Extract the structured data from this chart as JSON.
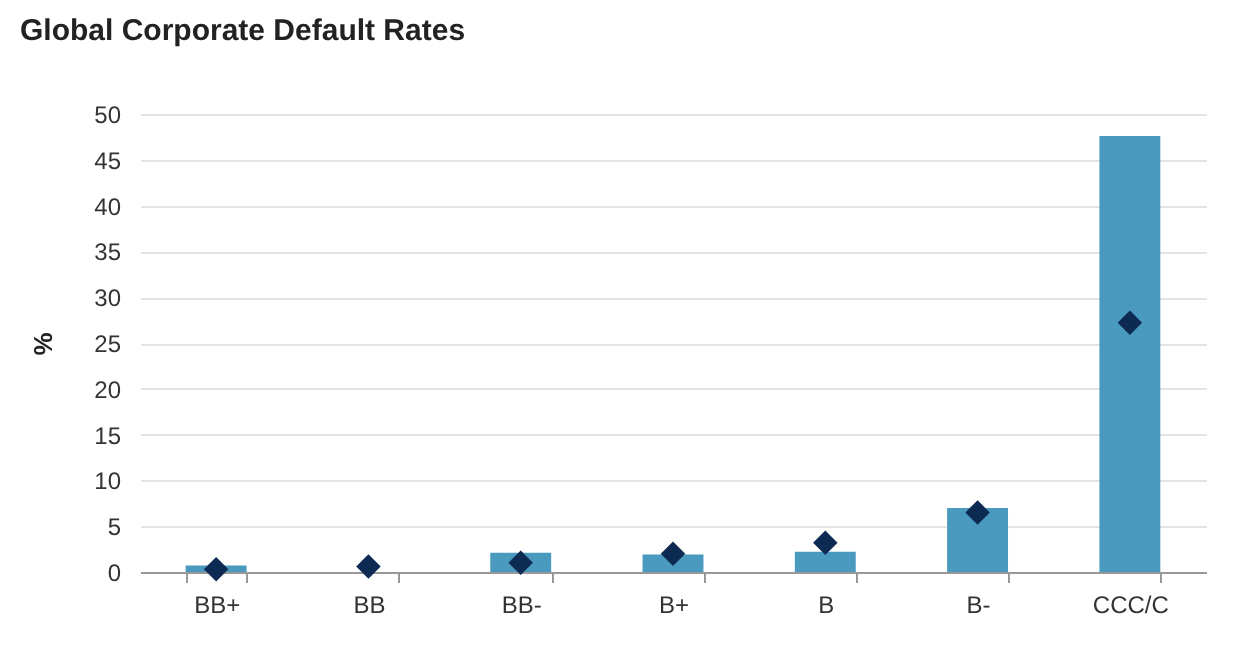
{
  "chart_data": {
    "type": "bar",
    "title": "Global Corporate Default Rates",
    "ylabel": "%",
    "categories": [
      "BB+",
      "BB",
      "BB-",
      "B+",
      "B",
      "B-",
      "CCC/C"
    ],
    "series": [
      {
        "color": "#4a9ac0",
        "values": [
          0.7,
          0,
          2.1,
          1.9,
          2.2,
          7.0,
          47.6
        ]
      },
      {
        "type": "scatter",
        "marker": "diamond",
        "color": "#0d2a52",
        "x": [
          "BB+",
          "BB",
          "BB-",
          "B+",
          "B",
          "B-",
          "CCC/C"
        ],
        "values": [
          0.3,
          0.6,
          1.0,
          2.0,
          3.2,
          6.5,
          27.2
        ]
      }
    ],
    "ylim": [
      0,
      50
    ],
    "yticks": [
      0,
      5,
      10,
      15,
      20,
      25,
      30,
      35,
      40,
      45,
      50
    ],
    "grid": "y"
  }
}
